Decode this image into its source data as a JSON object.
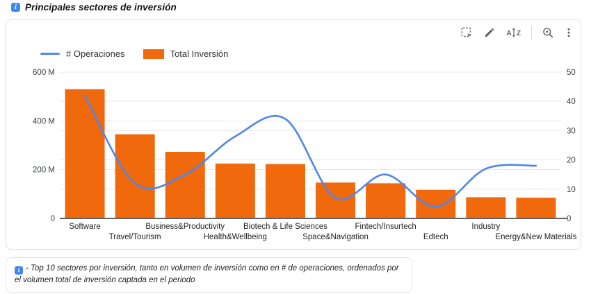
{
  "header": {
    "title": "Principales sectores de inversión",
    "info_icon_glyph": "i"
  },
  "toolbar": {
    "icons": [
      "select-area",
      "edit",
      "sort-az",
      "explore-zoom",
      "more-options"
    ]
  },
  "legend": {
    "items": [
      {
        "label": "# Operaciones",
        "type": "line",
        "color": "#4e86ec"
      },
      {
        "label": "Total Inversión",
        "type": "bar",
        "color": "#f0690c"
      }
    ]
  },
  "chart_data": {
    "type": "combo-bar-line",
    "categories": [
      "Software",
      "Travel/Tourism",
      "Business&Productivity",
      "Health&Wellbeing",
      "Biotech & Life Sciences",
      "Space&Navigation",
      "Fintech/Insurtech",
      "Edtech",
      "Industry",
      "Energy&New Materials"
    ],
    "series": [
      {
        "name": "Total Inversión",
        "type": "bar",
        "axis": "left",
        "color": "#f0690c",
        "values": [
          530,
          345,
          273,
          225,
          223,
          147,
          144,
          117,
          87,
          85
        ],
        "unit": "M"
      },
      {
        "name": "# Operaciones",
        "type": "line",
        "axis": "right",
        "color": "#4e86ec",
        "values": [
          42,
          12,
          15,
          28,
          34,
          7,
          15,
          4,
          17,
          18
        ]
      }
    ],
    "left_axis": {
      "range": [
        0,
        600
      ],
      "tick_values": [
        0,
        200,
        400,
        600
      ],
      "tick_labels": [
        "0",
        "200 M",
        "400 M",
        "600 M"
      ]
    },
    "right_axis": {
      "range": [
        0,
        50
      ],
      "tick_values": [
        0,
        10,
        20,
        30,
        40,
        50
      ],
      "tick_labels": [
        "0",
        "10",
        "20",
        "30",
        "40",
        "50"
      ]
    },
    "grid": true,
    "legend_position": "top-left",
    "colors": {
      "grid": "#e9e9e9",
      "baseline": "#5f6368",
      "axis_text": "#3c4043",
      "category_text": "#1f1f1f"
    }
  },
  "note": {
    "text": "- Top 10 sectores por inversión, tanto en volumen de inversión como en # de operaciones, ordenados por el volumen total de inversión captada en el periodo",
    "info_icon_glyph": "i"
  }
}
